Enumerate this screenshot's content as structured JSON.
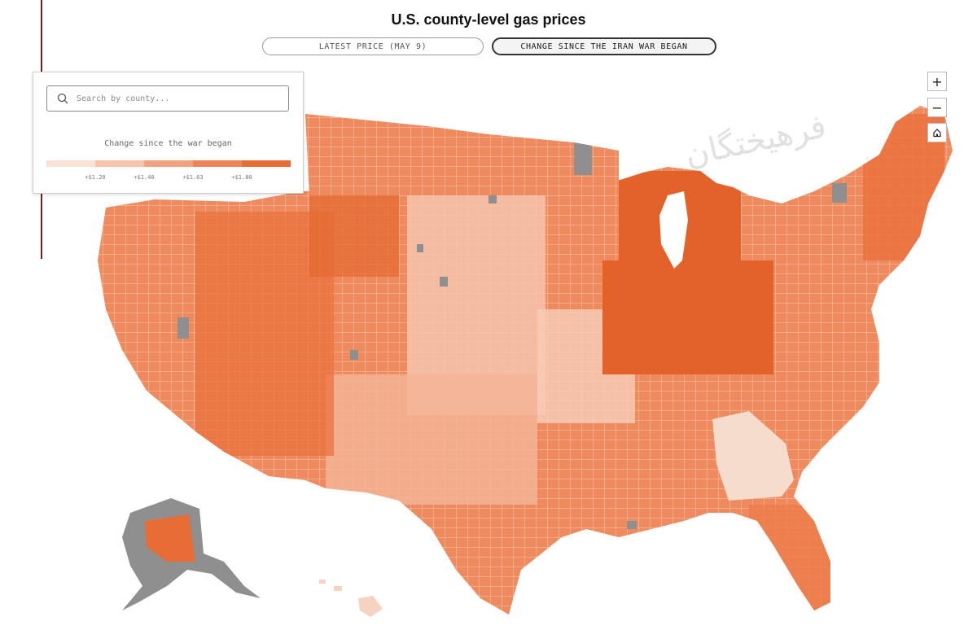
{
  "title": "U.S. county-level gas prices",
  "tabs": [
    {
      "label": "LATEST PRICE (MAY 9)",
      "active": false
    },
    {
      "label": "CHANGE SINCE THE IRAN WAR BEGAN",
      "active": true
    }
  ],
  "search": {
    "placeholder": "Search by county..."
  },
  "legend": {
    "title": "Change since the war began",
    "ticks": [
      "+$1.20",
      "+$1.40",
      "+$1.63",
      "+$1.80"
    ],
    "colors": [
      "#fbe2d6",
      "#f7c4ab",
      "#f3a27f",
      "#ee8558",
      "#e86c35"
    ]
  },
  "colors": {
    "no_data": "#8f8f8f",
    "high": "#e3622a",
    "low": "#fde6db"
  },
  "zoom": {
    "in_label": "+",
    "out_label": "−",
    "home_icon": "home-icon"
  },
  "watermark": "فرهیختگان"
}
